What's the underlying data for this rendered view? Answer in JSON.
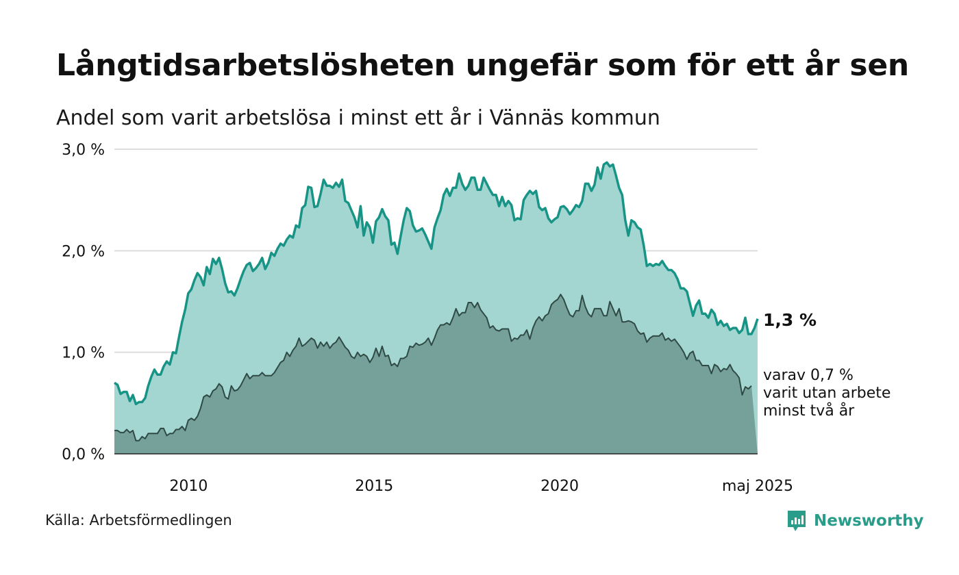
{
  "title": "Långtidsarbetslösheten ungefär som för ett år sen",
  "subtitle": "Andel som varit arbetslösa i minst ett år i Vännäs kommun",
  "source": "Källa: Arbetsförmedlingen",
  "brand": {
    "name": "Newsworthy",
    "icon": "newsworthy-logo-icon",
    "color": "#2a9d8a"
  },
  "chart_data": {
    "type": "area",
    "x_start": "2008-01",
    "x_end": "2025-05",
    "y_ticks": [
      "3,0 %",
      "2,0 %",
      "1,0 %",
      "0,0 %"
    ],
    "x_ticks": [
      "2010",
      "2015",
      "2020",
      "maj 2025"
    ],
    "ylim": [
      0,
      3.0
    ],
    "grid": true,
    "colors": {
      "series1_line": "#179486",
      "series1_fill": "#a3d6d1",
      "series2_line": "#2f4a44",
      "series2_fill": "#729b95"
    },
    "end_labels": {
      "series1": "1,3 %",
      "series2_line1": "varav 0,7 %",
      "series2_line2": "varit utan arbete",
      "series2_line3": "minst två år"
    },
    "series": [
      {
        "values": [
          0.7,
          0.68,
          0.59,
          0.61,
          0.61,
          0.52,
          0.58,
          0.49,
          0.51,
          0.51,
          0.55,
          0.67,
          0.76,
          0.83,
          0.78,
          0.78,
          0.86,
          0.91,
          0.88,
          1.0,
          0.99,
          1.15,
          1.3,
          1.42,
          1.58,
          1.62,
          1.71,
          1.78,
          1.74,
          1.66,
          1.84,
          1.77,
          1.92,
          1.87,
          1.93,
          1.82,
          1.68,
          1.59,
          1.6,
          1.56,
          1.63,
          1.72,
          1.8,
          1.86,
          1.88,
          1.8,
          1.83,
          1.87,
          1.93,
          1.82,
          1.88,
          1.98,
          1.95,
          2.02,
          2.07,
          2.05,
          2.11,
          2.15,
          2.13,
          2.25,
          2.23,
          2.42,
          2.45,
          2.63,
          2.62,
          2.43,
          2.44,
          2.56,
          2.7,
          2.64,
          2.64,
          2.62,
          2.67,
          2.63,
          2.7,
          2.49,
          2.47,
          2.4,
          2.33,
          2.23,
          2.44,
          2.15,
          2.28,
          2.23,
          2.08,
          2.29,
          2.33,
          2.41,
          2.34,
          2.3,
          2.06,
          2.08,
          1.97,
          2.14,
          2.3,
          2.42,
          2.39,
          2.25,
          2.19,
          2.2,
          2.22,
          2.16,
          2.09,
          2.02,
          2.23,
          2.32,
          2.4,
          2.55,
          2.61,
          2.54,
          2.62,
          2.62,
          2.76,
          2.66,
          2.6,
          2.64,
          2.72,
          2.72,
          2.6,
          2.6,
          2.72,
          2.66,
          2.6,
          2.55,
          2.55,
          2.44,
          2.53,
          2.44,
          2.49,
          2.45,
          2.3,
          2.32,
          2.31,
          2.5,
          2.55,
          2.59,
          2.56,
          2.59,
          2.43,
          2.4,
          2.42,
          2.32,
          2.28,
          2.31,
          2.33,
          2.43,
          2.44,
          2.41,
          2.36,
          2.4,
          2.45,
          2.43,
          2.49,
          2.66,
          2.66,
          2.59,
          2.65,
          2.82,
          2.71,
          2.85,
          2.87,
          2.83,
          2.85,
          2.74,
          2.62,
          2.55,
          2.3,
          2.15,
          2.3,
          2.28,
          2.23,
          2.21,
          2.05,
          1.85,
          1.87,
          1.85,
          1.87,
          1.86,
          1.9,
          1.85,
          1.81,
          1.81,
          1.78,
          1.72,
          1.63,
          1.63,
          1.6,
          1.48,
          1.36,
          1.46,
          1.51,
          1.38,
          1.38,
          1.34,
          1.42,
          1.38,
          1.27,
          1.31,
          1.26,
          1.28,
          1.22,
          1.24,
          1.24,
          1.19,
          1.22,
          1.34,
          1.18,
          1.18,
          1.24,
          1.33
        ]
      },
      {
        "values": [
          0.23,
          0.23,
          0.21,
          0.21,
          0.24,
          0.21,
          0.23,
          0.13,
          0.13,
          0.17,
          0.15,
          0.2,
          0.2,
          0.2,
          0.2,
          0.25,
          0.25,
          0.18,
          0.2,
          0.2,
          0.24,
          0.24,
          0.27,
          0.23,
          0.33,
          0.35,
          0.33,
          0.37,
          0.45,
          0.56,
          0.58,
          0.56,
          0.62,
          0.64,
          0.69,
          0.66,
          0.56,
          0.54,
          0.67,
          0.62,
          0.63,
          0.67,
          0.73,
          0.79,
          0.74,
          0.77,
          0.77,
          0.77,
          0.8,
          0.77,
          0.77,
          0.77,
          0.8,
          0.85,
          0.9,
          0.92,
          1.0,
          0.96,
          1.02,
          1.06,
          1.14,
          1.06,
          1.08,
          1.11,
          1.14,
          1.12,
          1.04,
          1.1,
          1.06,
          1.1,
          1.04,
          1.08,
          1.1,
          1.15,
          1.1,
          1.05,
          1.02,
          0.96,
          0.94,
          1.0,
          0.96,
          0.98,
          0.96,
          0.9,
          0.95,
          1.04,
          0.96,
          1.06,
          0.96,
          0.97,
          0.87,
          0.89,
          0.86,
          0.94,
          0.94,
          0.96,
          1.06,
          1.05,
          1.09,
          1.07,
          1.08,
          1.1,
          1.14,
          1.07,
          1.14,
          1.22,
          1.27,
          1.27,
          1.29,
          1.27,
          1.34,
          1.43,
          1.36,
          1.39,
          1.39,
          1.49,
          1.49,
          1.44,
          1.49,
          1.42,
          1.38,
          1.34,
          1.24,
          1.26,
          1.22,
          1.21,
          1.23,
          1.23,
          1.23,
          1.11,
          1.14,
          1.13,
          1.17,
          1.17,
          1.22,
          1.13,
          1.24,
          1.31,
          1.35,
          1.31,
          1.36,
          1.38,
          1.47,
          1.5,
          1.52,
          1.57,
          1.52,
          1.44,
          1.37,
          1.35,
          1.41,
          1.41,
          1.56,
          1.45,
          1.38,
          1.35,
          1.43,
          1.43,
          1.43,
          1.36,
          1.36,
          1.5,
          1.43,
          1.36,
          1.43,
          1.3,
          1.3,
          1.31,
          1.3,
          1.28,
          1.21,
          1.18,
          1.19,
          1.1,
          1.14,
          1.16,
          1.16,
          1.16,
          1.19,
          1.12,
          1.14,
          1.11,
          1.13,
          1.09,
          1.05,
          1.0,
          0.93,
          0.99,
          1.01,
          0.92,
          0.92,
          0.87,
          0.87,
          0.87,
          0.79,
          0.88,
          0.86,
          0.81,
          0.84,
          0.83,
          0.88,
          0.82,
          0.79,
          0.75,
          0.58,
          0.66,
          0.64,
          0.67
        ]
      }
    ]
  }
}
